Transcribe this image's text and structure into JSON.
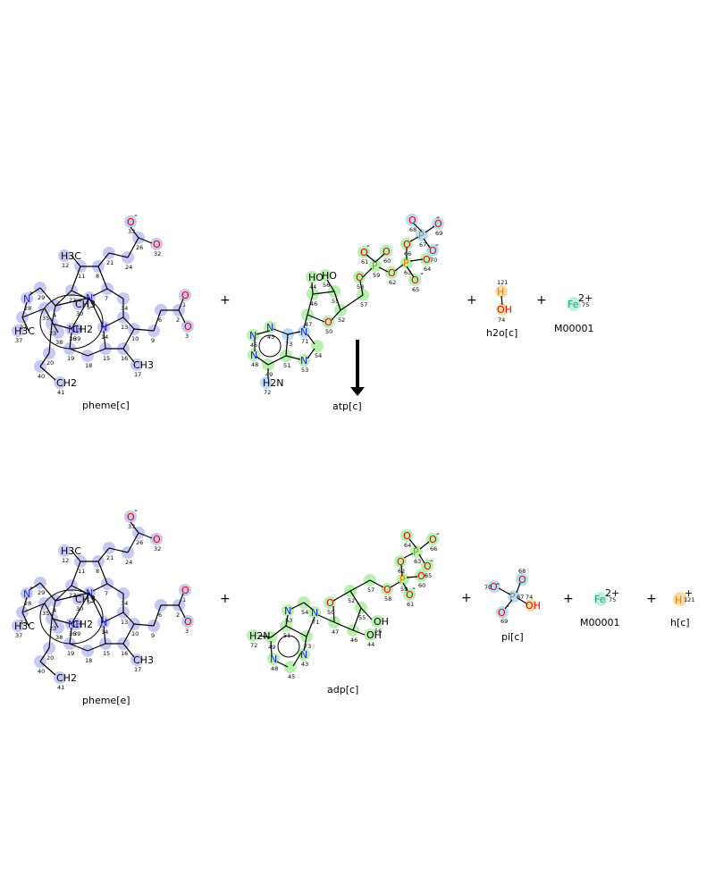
{
  "reaction": {
    "reactants": [
      {
        "id": "pheme_c",
        "name": "pheme[c]"
      },
      {
        "id": "atp_c",
        "name": "atp[c]"
      },
      {
        "id": "h2o_c",
        "name": "h2o[c]"
      },
      {
        "id": "fe_c",
        "name": "M00001"
      }
    ],
    "products": [
      {
        "id": "pheme_e",
        "name": "pheme[e]"
      },
      {
        "id": "adp_c",
        "name": "adp[c]"
      },
      {
        "id": "pi_c",
        "name": "pi[c]"
      },
      {
        "id": "fe_c2",
        "name": "M00001"
      },
      {
        "id": "h_c",
        "name": "h[c]"
      }
    ],
    "plus_sign": "+",
    "arrow": "down"
  },
  "atom_text": {
    "O": "O",
    "N": "N",
    "H": "H",
    "P": "P",
    "Fe": "Fe",
    "OH": "OH",
    "HO": "HO",
    "H3C": "H3C",
    "CH3": "CH3",
    "CH2": "CH2",
    "H2N": "H2N",
    "NH": "NH",
    "minus": "-",
    "fe_charge": "2+",
    "h_charge": "+"
  },
  "colors": {
    "pheme_highlight": "#c8c8f5",
    "pheme_highlight_dark": "#b4b4ee",
    "nucleotide_highlight": "#b9f0b0",
    "phosphate_highlight": "#b8dcf5",
    "water_highlight": "#fbdca8",
    "fe_highlight": "#bff0e0",
    "oxygen": "#e00000",
    "nitrogen": "#2020d0",
    "phosphorus": "#d08000",
    "iron": "#20a080"
  }
}
